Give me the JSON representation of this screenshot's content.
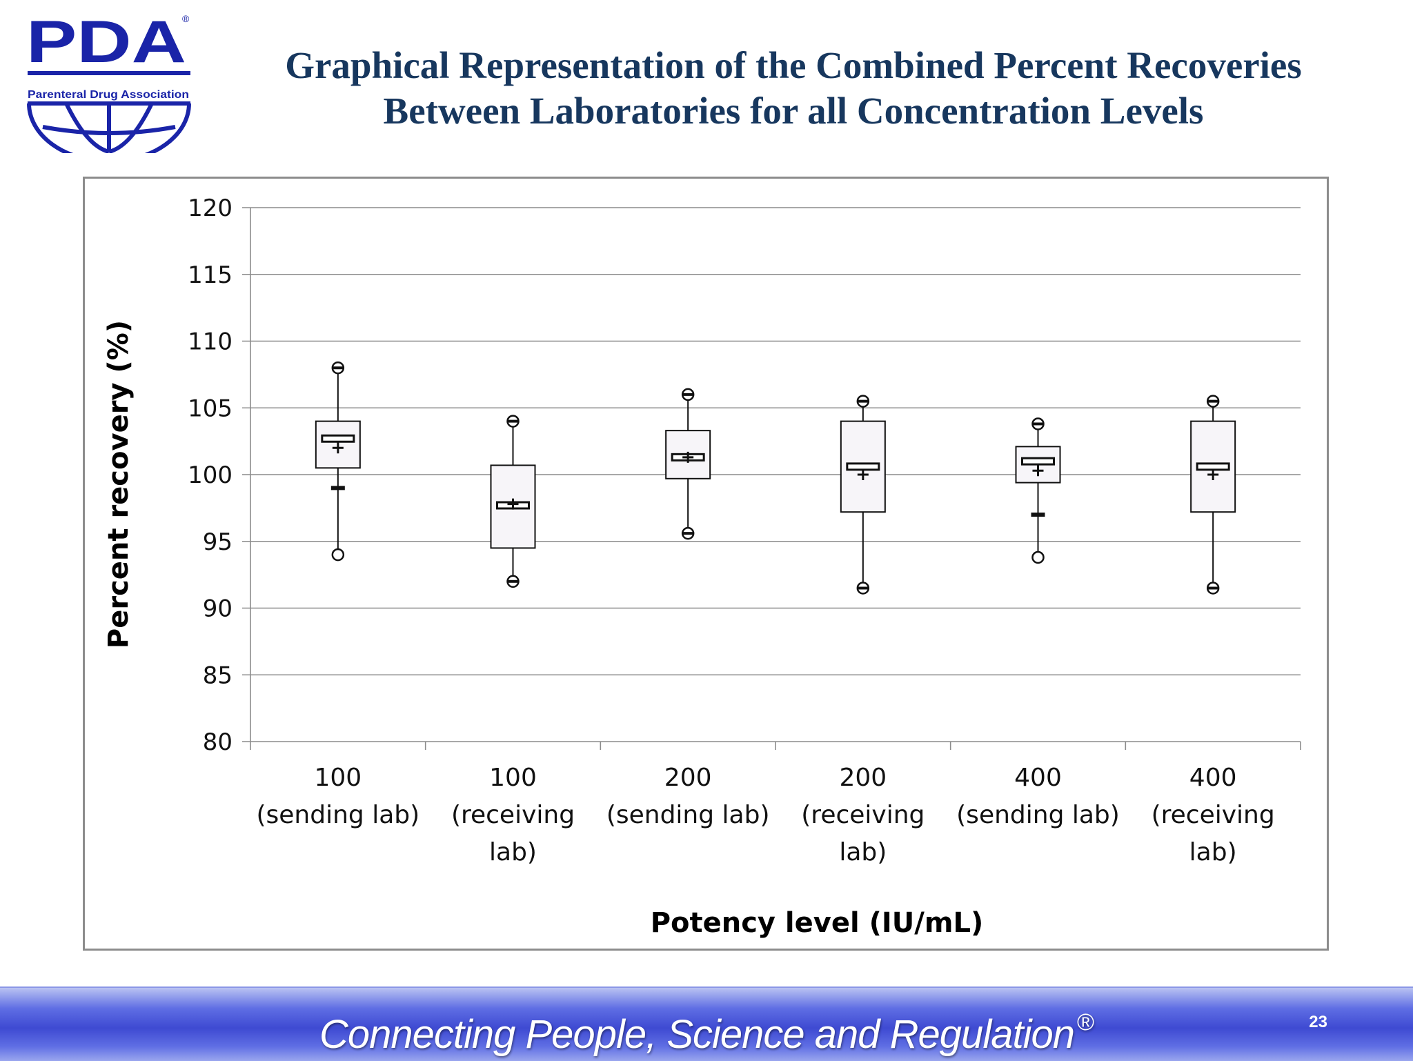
{
  "logo": {
    "text": "PDA",
    "registered": "®",
    "subtitle": "Parenteral Drug Association"
  },
  "title": {
    "line1": "Graphical Representation of the Combined Percent Recoveries",
    "line2": "Between Laboratories for all Concentration Levels"
  },
  "footer": {
    "tagline": "Connecting People, Science and Regulation",
    "registered": "®",
    "page_number": "23"
  },
  "colors": {
    "title": "#17375e",
    "footer_blue": "#3e4ad2",
    "logo_blue": "#1a24a8"
  },
  "chart_data": {
    "type": "box",
    "xlabel": "Potency level (IU/mL)",
    "ylabel": "Percent recovery (%)",
    "ylim": [
      80,
      120
    ],
    "yticks": [
      80,
      85,
      90,
      95,
      100,
      105,
      110,
      115,
      120
    ],
    "grid": true,
    "categories": [
      [
        "100",
        "(sending lab)"
      ],
      [
        "100",
        "(receiving",
        "lab)"
      ],
      [
        "200",
        "(sending lab)"
      ],
      [
        "200",
        "(receiving",
        "lab)"
      ],
      [
        "400",
        "(sending lab)"
      ],
      [
        "400",
        "(receiving",
        "lab)"
      ]
    ],
    "boxes": [
      {
        "min": 94.0,
        "whisker_low": 99.0,
        "q1": 100.5,
        "median": 102.7,
        "q3": 104.0,
        "max": 108.0,
        "mean": 102.0
      },
      {
        "min": 92.0,
        "whisker_low": 92.0,
        "q1": 94.5,
        "median": 97.7,
        "q3": 100.7,
        "max": 104.0,
        "mean": 97.8
      },
      {
        "min": 95.6,
        "whisker_low": 95.6,
        "q1": 99.7,
        "median": 101.3,
        "q3": 103.3,
        "max": 106.0,
        "mean": 101.3
      },
      {
        "min": 91.5,
        "whisker_low": 91.5,
        "q1": 97.2,
        "median": 100.6,
        "q3": 104.0,
        "max": 105.5,
        "mean": 100.0
      },
      {
        "min": 93.8,
        "whisker_low": 97.0,
        "q1": 99.4,
        "median": 101.0,
        "q3": 102.1,
        "max": 103.8,
        "mean": 100.3
      },
      {
        "min": 91.5,
        "whisker_low": 91.5,
        "q1": 97.2,
        "median": 100.6,
        "q3": 104.0,
        "max": 105.5,
        "mean": 100.0
      }
    ]
  }
}
